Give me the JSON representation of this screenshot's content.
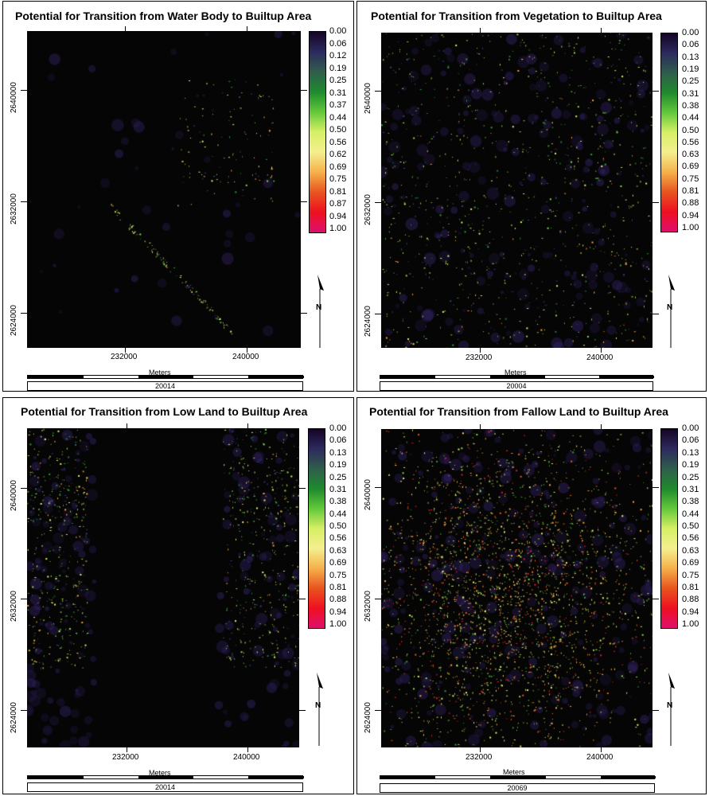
{
  "colors": {
    "legend_gradient": [
      "#150425",
      "#2d2a5e",
      "#2f5e4c",
      "#1f8a2e",
      "#63c83a",
      "#d7ef66",
      "#f4ef8e",
      "#f5b04a",
      "#e8541f",
      "#ee1020",
      "#df0f6e"
    ],
    "map_background": "#050505"
  },
  "panels": [
    {
      "title": "Potential for Transition from Water Body to Builtup Area",
      "legend": [
        "0.00",
        "0.06",
        "0.12",
        "0.19",
        "0.25",
        "0.31",
        "0.37",
        "0.44",
        "0.50",
        "0.56",
        "0.62",
        "0.69",
        "0.75",
        "0.81",
        "0.87",
        "0.94",
        "1.00"
      ],
      "x_ticks": [
        "232000",
        "240000"
      ],
      "y_ticks": [
        "2640000",
        "2632000",
        "2624000"
      ],
      "meters": "Meters",
      "footer": "20014",
      "north": "N",
      "density": 0.03,
      "mode": "water"
    },
    {
      "title": "Potential for Transition from Vegetation to Builtup Area",
      "legend": [
        "0.00",
        "0.06",
        "0.13",
        "0.19",
        "0.25",
        "0.31",
        "0.38",
        "0.44",
        "0.50",
        "0.56",
        "0.63",
        "0.69",
        "0.75",
        "0.81",
        "0.88",
        "0.94",
        "1.00"
      ],
      "x_ticks": [
        "232000",
        "240000"
      ],
      "y_ticks": [
        "2640000",
        "2632000",
        "2624000"
      ],
      "meters": "Meters",
      "footer": "20004",
      "north": "N",
      "density": 0.12,
      "mode": "veg"
    },
    {
      "title": "Potential for Transition from Low Land to Builtup Area",
      "legend": [
        "0.00",
        "0.06",
        "0.13",
        "0.19",
        "0.25",
        "0.31",
        "0.38",
        "0.44",
        "0.50",
        "0.56",
        "0.63",
        "0.69",
        "0.75",
        "0.81",
        "0.88",
        "0.94",
        "1.00"
      ],
      "x_ticks": [
        "232000",
        "240000"
      ],
      "y_ticks": [
        "2640000",
        "2632000",
        "2624000"
      ],
      "meters": "Meters",
      "footer": "20014",
      "north": "N",
      "density": 0.1,
      "mode": "low"
    },
    {
      "title": "Potential for Transition from Fallow Land to Builtup Area",
      "legend": [
        "0.00",
        "0.06",
        "0.13",
        "0.19",
        "0.25",
        "0.31",
        "0.38",
        "0.44",
        "0.50",
        "0.56",
        "0.63",
        "0.69",
        "0.75",
        "0.81",
        "0.88",
        "0.94",
        "1.00"
      ],
      "x_ticks": [
        "232000",
        "240000"
      ],
      "y_ticks": [
        "2640000",
        "2632000",
        "2624000"
      ],
      "meters": "Meters",
      "footer": "20069",
      "north": "N",
      "density": 0.35,
      "mode": "fallow"
    }
  ]
}
